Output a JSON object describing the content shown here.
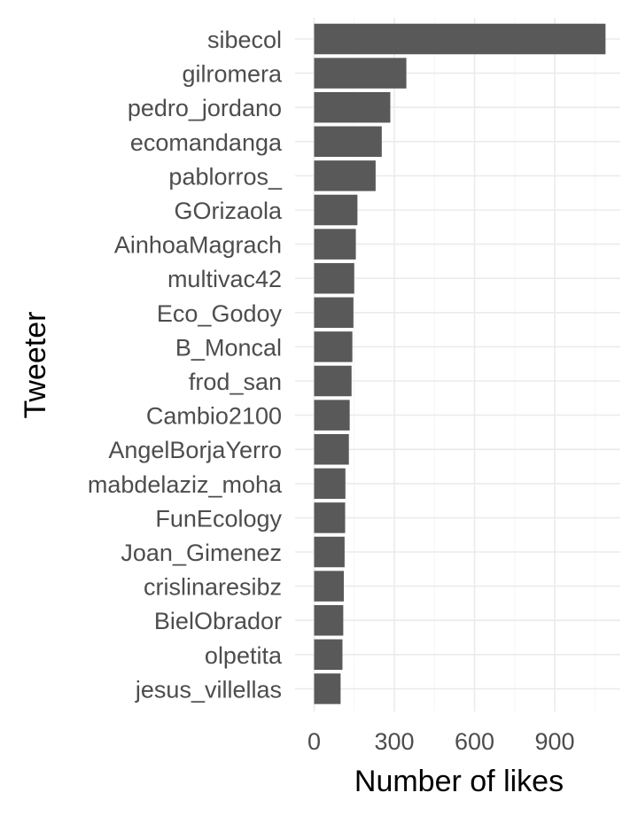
{
  "chart_data": {
    "type": "bar",
    "orientation": "horizontal",
    "xlabel": "Number of likes",
    "ylabel": "Tweeter",
    "xlim": [
      0,
      1130
    ],
    "xticks": [
      0,
      300,
      600,
      900
    ],
    "grid": true,
    "bar_color": "#595959",
    "grid_color": "#ebebeb",
    "categories": [
      "sibecol",
      "gilromera",
      "pedro_jordano",
      "ecomandanga",
      "pablorros_",
      "GOrizaola",
      "AinhoaMagrach",
      "multivac42",
      "Eco_Godoy",
      "B_Moncal",
      "frod_san",
      "Cambio2100",
      "AngelBorjaYerro",
      "mabdelaziz_moha",
      "FunEcology",
      "Joan_Gimenez",
      "crislinaresibz",
      "BielObrador",
      "olpetita",
      "jesus_villellas"
    ],
    "values": [
      1090,
      345,
      285,
      253,
      230,
      162,
      156,
      150,
      147,
      143,
      140,
      133,
      130,
      117,
      116,
      114,
      111,
      109,
      106,
      99
    ]
  }
}
